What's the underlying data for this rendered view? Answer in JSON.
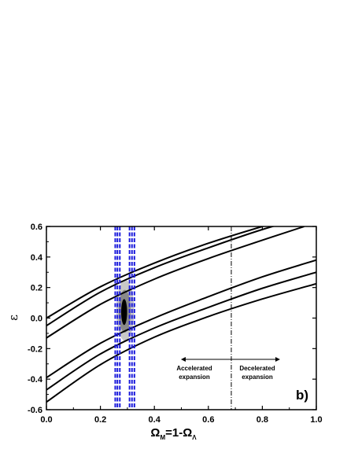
{
  "chart_data": {
    "type": "line",
    "xlabel_parts": [
      "Ω",
      "M",
      "=1-Ω",
      "Λ"
    ],
    "ylabel": "ε",
    "xlim": [
      0.0,
      1.0
    ],
    "ylim": [
      -0.6,
      0.6
    ],
    "x_ticks": [
      "0.0",
      "0.2",
      "0.4",
      "0.6",
      "0.8",
      "1.0"
    ],
    "y_ticks": [
      "-0.6",
      "-0.4",
      "-0.2",
      "0.0",
      "0.2",
      "0.4",
      "0.6"
    ],
    "grid": false,
    "panel_label": "b)",
    "annotations": {
      "accelerated": [
        "Accelerated",
        "expansion"
      ],
      "decelerated": [
        "Decelerated",
        "expansion"
      ],
      "transition_x": 0.685
    },
    "curves": [
      {
        "x": [
          0,
          0.2,
          0.4,
          0.6,
          0.8,
          1.0
        ],
        "y": [
          0.0,
          0.205,
          0.36,
          0.49,
          0.6,
          0.7
        ]
      },
      {
        "x": [
          0,
          0.2,
          0.4,
          0.6,
          0.8,
          1.0
        ],
        "y": [
          -0.05,
          0.17,
          0.33,
          0.46,
          0.58,
          0.68
        ]
      },
      {
        "x": [
          0,
          0.2,
          0.4,
          0.6,
          0.8,
          0.955
        ],
        "y": [
          -0.13,
          0.09,
          0.255,
          0.39,
          0.51,
          0.6
        ]
      },
      {
        "x": [
          0,
          0.2,
          0.4,
          0.6,
          0.8,
          1.0
        ],
        "y": [
          -0.39,
          -0.165,
          0.0,
          0.14,
          0.27,
          0.38
        ]
      },
      {
        "x": [
          0,
          0.2,
          0.4,
          0.6,
          0.8,
          1.0
        ],
        "y": [
          -0.47,
          -0.235,
          -0.065,
          0.07,
          0.195,
          0.3
        ]
      },
      {
        "x": [
          0,
          0.2,
          0.4,
          0.6,
          0.8,
          1.0
        ],
        "y": [
          -0.55,
          -0.305,
          -0.125,
          0.01,
          0.125,
          0.225
        ]
      }
    ],
    "vertical_bands": [
      {
        "color": "#1a1adc",
        "x": [
          0.255,
          0.263,
          0.272
        ]
      },
      {
        "color": "#1a1adc",
        "x": [
          0.308,
          0.317,
          0.326
        ]
      }
    ],
    "contours": [
      {
        "level": "outer",
        "color": "#c8c8c8",
        "cx": 0.292,
        "cy": 0.05,
        "rx": 0.033,
        "ry": 0.2
      },
      {
        "level": "middle",
        "color": "#8a8a8a",
        "cx": 0.29,
        "cy": 0.045,
        "rx": 0.022,
        "ry": 0.14
      },
      {
        "level": "inner",
        "color": "#000000",
        "cx": 0.288,
        "cy": 0.04,
        "rx": 0.011,
        "ry": 0.085
      }
    ]
  }
}
